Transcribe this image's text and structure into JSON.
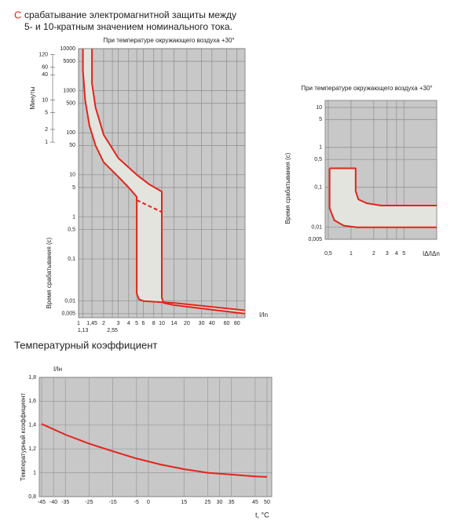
{
  "header": {
    "marker": "С",
    "lines": [
      "срабатывание электромагнитной защиты между",
      "5- и 10-кратным значением номинального тока."
    ]
  },
  "chart_data": [
    {
      "type": "line",
      "subtitle": "При температуре окружающего воздуха +30°",
      "x_label": "I/In",
      "y_label": "Время срабатывания (с)",
      "minute_label": "Минуты",
      "annotation": "C",
      "xlog": true,
      "ylog": true,
      "xlim": [
        1,
        100
      ],
      "ylim": [
        0.004,
        10000
      ],
      "xticks": [
        1,
        {
          "value": 1.13,
          "label": "1,13"
        },
        {
          "value": 1.45,
          "label": "1,45"
        },
        2,
        {
          "value": 2.55,
          "label": "2,55"
        },
        3,
        4,
        5,
        6,
        8,
        10,
        14,
        20,
        30,
        40,
        60,
        80
      ],
      "yticks": [
        10000,
        5000,
        1000,
        500,
        100,
        50,
        10,
        5,
        1,
        {
          "value": 0.5,
          "label": "0,5"
        },
        {
          "value": 0.1,
          "label": "0,1"
        },
        {
          "value": 0.01,
          "label": "0,01"
        },
        {
          "value": 0.005,
          "label": "0,005"
        }
      ],
      "minute_ticks": [
        {
          "value": 7200,
          "label": "120"
        },
        {
          "value": 3600,
          "label": "60"
        },
        {
          "value": 2400,
          "label": "40"
        },
        {
          "value": 600,
          "label": "10"
        },
        {
          "value": 300,
          "label": "5"
        },
        {
          "value": 120,
          "label": "2"
        },
        {
          "value": 60,
          "label": "1"
        }
      ],
      "grid": true,
      "background": "#c8c8c8",
      "grid_color": "#8c8c8c",
      "band_fill": "#e4e4de",
      "series": [
        {
          "color": "#e3241b",
          "x": [
            1.13,
            1.13,
            1.2,
            1.35,
            1.6,
            2,
            3,
            4,
            5,
            5,
            5.3,
            6,
            14,
            100
          ],
          "values": [
            10000,
            3000,
            600,
            150,
            50,
            20,
            9,
            5,
            3,
            0.015,
            0.011,
            0.01,
            0.009,
            0.006
          ]
        },
        {
          "color": "#e3241b",
          "x": [
            1.45,
            1.45,
            1.6,
            2,
            3,
            5,
            7,
            10,
            10,
            10.5,
            14,
            100
          ],
          "values": [
            10000,
            1500,
            400,
            90,
            25,
            10,
            6,
            4,
            0.012,
            0.009,
            0.008,
            0.005
          ]
        },
        {
          "color": "#e3241b",
          "dashed": true,
          "x": [
            5,
            10
          ],
          "values": [
            2.5,
            1.3
          ]
        }
      ]
    },
    {
      "type": "line",
      "subtitle": "При температуре окружающего воздуха +30°",
      "x_label": "IΔ/IΔn",
      "y_label": "Время срабатывания (с)",
      "xlog": true,
      "ylog": true,
      "xlim": [
        0.455,
        13.6
      ],
      "ylim": [
        0.005,
        15
      ],
      "xticks": [
        {
          "value": 0.5,
          "label": "0,5"
        },
        1,
        2,
        3,
        4,
        5
      ],
      "yticks": [
        10,
        5,
        1,
        {
          "value": 0.5,
          "label": "0,5"
        },
        {
          "value": 0.1,
          "label": "0,1"
        },
        {
          "value": 0.01,
          "label": "0,01"
        },
        {
          "value": 0.005,
          "label": "0,005"
        }
      ],
      "grid": true,
      "background": "#c8c8c8",
      "grid_color": "#8c8c8c",
      "band_fill": "#e4e4de",
      "series": [
        {
          "color": "#e3241b",
          "x": [
            0.52,
            1.15,
            1.15,
            1.25,
            1.6,
            2.5,
            13.6
          ],
          "values": [
            0.3,
            0.3,
            0.08,
            0.05,
            0.04,
            0.035,
            0.035
          ]
        },
        {
          "color": "#e3241b",
          "x": [
            0.52,
            0.52,
            0.6,
            0.8,
            1.2,
            13.6
          ],
          "values": [
            0.3,
            0.03,
            0.015,
            0.011,
            0.01,
            0.01
          ]
        }
      ]
    },
    {
      "type": "line",
      "title": "Температурный коэффициент",
      "y_unit": "I/Iн",
      "y_label": "Температурный коэффициент",
      "x_label": "t, °C",
      "xlim": [
        -46,
        52
      ],
      "ylim": [
        0.8,
        1.8
      ],
      "xticks": [
        -45,
        -40,
        -35,
        -25,
        -15,
        -5,
        0,
        15,
        25,
        30,
        35,
        45,
        50
      ],
      "yticks": [
        {
          "value": 0.8,
          "label": "0,8"
        },
        1,
        {
          "value": 1.2,
          "label": "1,2"
        },
        {
          "value": 1.4,
          "label": "1,4"
        },
        {
          "value": 1.6,
          "label": "1,6"
        },
        {
          "value": 1.8,
          "label": "1,8"
        }
      ],
      "grid": true,
      "background": "#c8c8c8",
      "grid_color": "#9a9a9a",
      "series": [
        {
          "color": "#e3241b",
          "x": [
            -45,
            -35,
            -25,
            -15,
            -5,
            5,
            15,
            25,
            35,
            45,
            50
          ],
          "values": [
            1.41,
            1.32,
            1.245,
            1.18,
            1.12,
            1.07,
            1.03,
            1.0,
            0.985,
            0.97,
            0.965
          ]
        }
      ]
    }
  ]
}
